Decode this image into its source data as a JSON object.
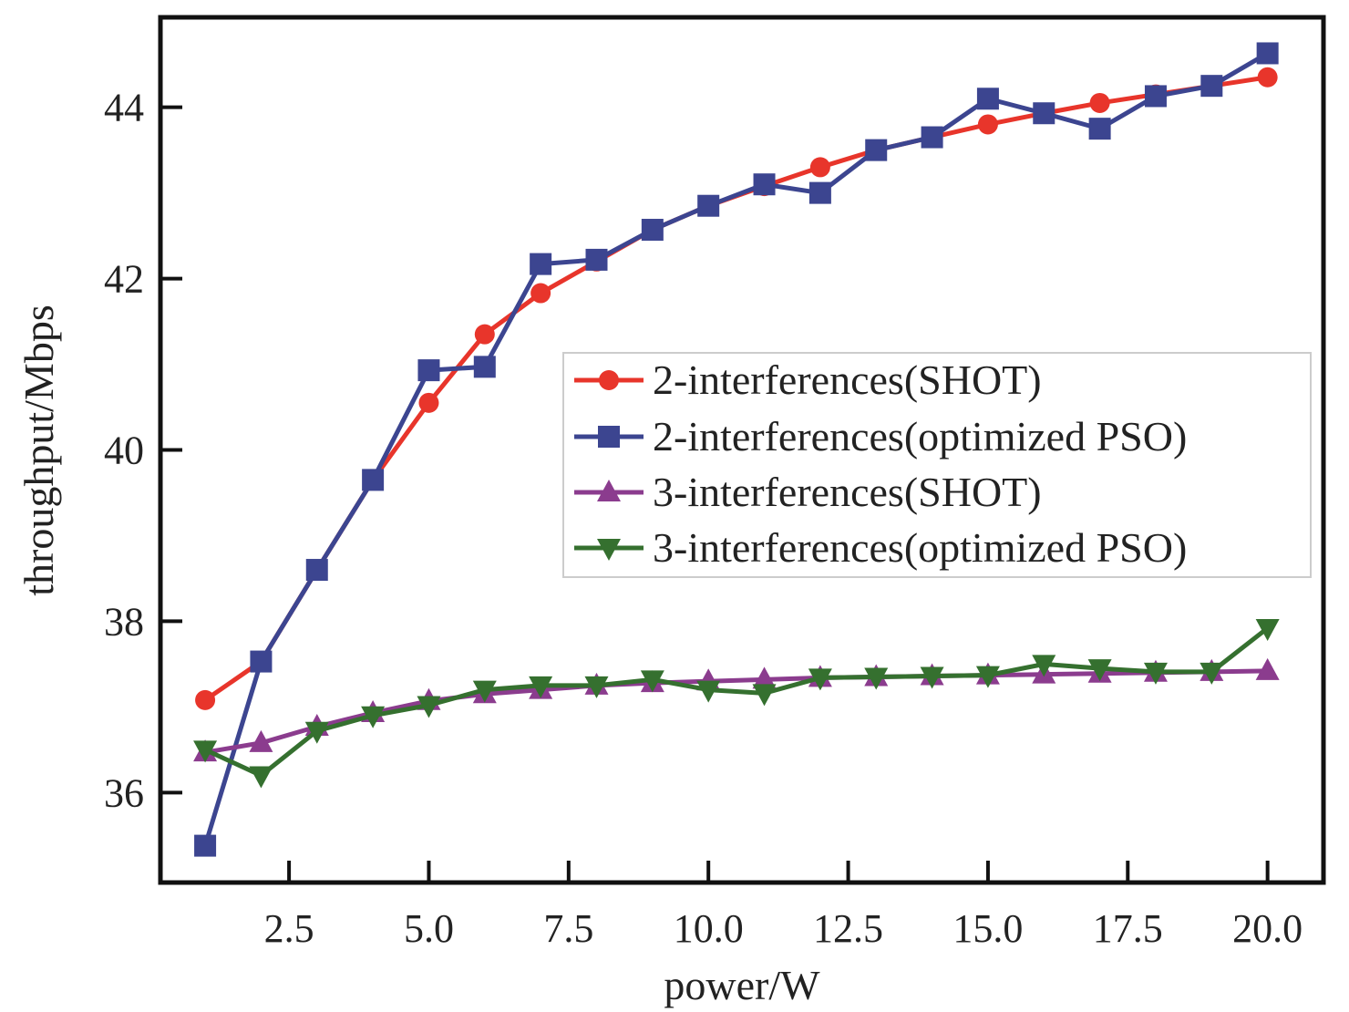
{
  "chart_data": {
    "type": "line",
    "title": "",
    "xlabel": "power/W",
    "ylabel": "throughput/Mbps",
    "xlim": [
      0.2,
      21.0
    ],
    "ylim": [
      34.95,
      45.05
    ],
    "xticks": [
      2.5,
      5.0,
      7.5,
      10.0,
      12.5,
      15.0,
      17.5,
      20.0
    ],
    "xtick_labels": [
      "2.5",
      "5.0",
      "7.5",
      "10.0",
      "12.5",
      "15.0",
      "17.5",
      "20.0"
    ],
    "yticks": [
      36,
      38,
      40,
      42,
      44
    ],
    "ytick_labels": [
      "36",
      "38",
      "40",
      "42",
      "44"
    ],
    "grid": false,
    "legend_position": "center-right",
    "x": [
      1,
      2,
      3,
      4,
      5,
      6,
      7,
      8,
      9,
      10,
      11,
      12,
      13,
      14,
      15,
      16,
      17,
      18,
      19,
      20
    ],
    "series": [
      {
        "name": "2-interferences(SHOT)",
        "color": "#e8352b",
        "marker": "circle",
        "values": [
          37.08,
          37.53,
          38.6,
          39.65,
          40.55,
          41.35,
          41.83,
          42.2,
          42.57,
          42.85,
          43.08,
          43.3,
          43.5,
          43.65,
          43.8,
          43.93,
          44.05,
          44.15,
          44.25,
          44.35
        ]
      },
      {
        "name": "2-interferences(optimized PSO)",
        "color": "#3c4590",
        "marker": "square",
        "values": [
          35.38,
          37.53,
          38.6,
          39.65,
          40.93,
          40.97,
          42.17,
          42.22,
          42.57,
          42.85,
          43.1,
          43.0,
          43.5,
          43.65,
          44.1,
          43.93,
          43.75,
          44.13,
          44.25,
          44.63
        ]
      },
      {
        "name": "3-interferences(SHOT)",
        "color": "#8b3c8e",
        "marker": "triangle-up",
        "values": [
          36.47,
          36.58,
          36.77,
          36.93,
          37.07,
          37.15,
          37.2,
          37.25,
          37.28,
          37.3,
          37.32,
          37.34,
          37.35,
          37.36,
          37.37,
          37.38,
          37.39,
          37.4,
          37.41,
          37.42
        ]
      },
      {
        "name": "3-interferences(optimized PSO)",
        "color": "#35702f",
        "marker": "triangle-down",
        "values": [
          36.5,
          36.2,
          36.72,
          36.9,
          37.02,
          37.2,
          37.25,
          37.25,
          37.32,
          37.2,
          37.16,
          37.34,
          37.35,
          37.36,
          37.37,
          37.5,
          37.45,
          37.41,
          37.41,
          37.92
        ]
      }
    ]
  }
}
